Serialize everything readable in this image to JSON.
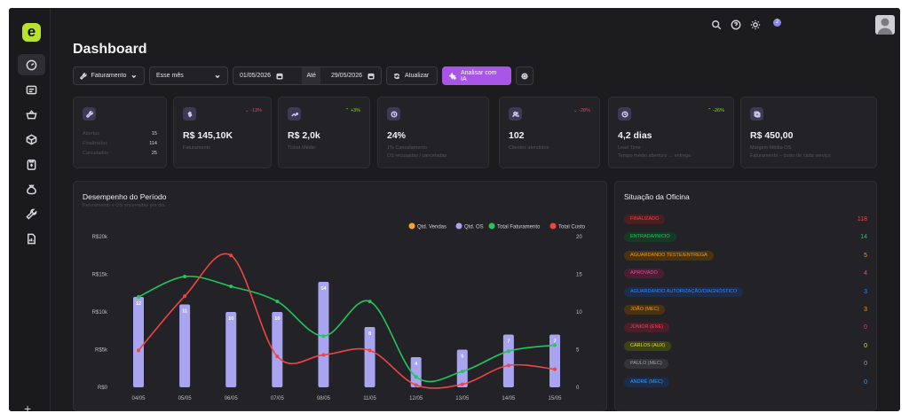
{
  "header": {
    "title": "Dashboard",
    "notification_count": "2"
  },
  "filters": {
    "metric": "Faturamento",
    "period": "Esse mês",
    "date_from": "01/05/2026",
    "until_label": "Até",
    "date_to": "29/05/2026",
    "refresh_label": "Atualizar",
    "ai_label": "Analisar com IA"
  },
  "cards": [
    {
      "value": "",
      "rows": [
        {
          "label": "Abertas",
          "value": "15"
        },
        {
          "label": "Finalizadas",
          "value": "114"
        },
        {
          "label": "Cancelados",
          "value": "25"
        }
      ]
    },
    {
      "value": "R$ 145,10K",
      "change": "-13%",
      "trend": "down",
      "sub": "Faturamento"
    },
    {
      "value": "R$ 2,0k",
      "change": "+3%",
      "trend": "up",
      "sub": "Ticket Médio"
    },
    {
      "value": "24%",
      "change": "",
      "sub": "1% Cancelamento",
      "sub2": "OS recusadas / canceladas"
    },
    {
      "value": "102",
      "change": "-28%",
      "trend": "down",
      "sub": "Clientes atendidos"
    },
    {
      "value": "4,2 dias",
      "change": "-26%",
      "trend": "up",
      "sub": "Lead Time",
      "sub2": "Tempo médio abertura → entrega"
    },
    {
      "value": "R$ 450,00",
      "change": "",
      "sub": "Margem Média OS",
      "sub2": "Faturamento − custo de cada serviço"
    }
  ],
  "performance": {
    "title": "Desempenho do Período",
    "subtitle": "Faturamento e OS encerradas por dia",
    "legend": [
      "Qtd. Vendas",
      "Qtd. OS",
      "Total Faturamento",
      "Total Custo"
    ],
    "colors": {
      "vendas": "#f5a524",
      "os": "#a9a4f0",
      "faturamento": "#22c55e",
      "custo": "#ef4444"
    }
  },
  "chart_data": {
    "type": "bar",
    "categories": [
      "04/05",
      "05/05",
      "06/05",
      "07/05",
      "08/05",
      "11/05",
      "12/05",
      "13/05",
      "14/05",
      "15/05"
    ],
    "y_left_ticks": [
      "R$0",
      "R$5k",
      "R$10k",
      "R$15k",
      "R$20k"
    ],
    "y_left_range": [
      0,
      20000
    ],
    "y_right_ticks": [
      "0",
      "5",
      "10",
      "15",
      "20"
    ],
    "y_right_range": [
      0,
      20
    ],
    "series": [
      {
        "name": "Qtd. OS",
        "type": "bar",
        "axis": "right",
        "values": [
          12,
          11,
          10,
          10,
          14,
          8,
          4,
          5,
          7,
          7
        ]
      },
      {
        "name": "Total Faturamento",
        "type": "line",
        "axis": "left",
        "values": [
          12000,
          14700,
          13400,
          11400,
          6800,
          11400,
          1400,
          2100,
          4800,
          5600
        ]
      },
      {
        "name": "Total Custo",
        "type": "line",
        "axis": "left",
        "values": [
          4900,
          12100,
          17500,
          4100,
          4300,
          4900,
          300,
          400,
          2900,
          2400
        ]
      }
    ]
  },
  "situation": {
    "title": "Situação da Oficina",
    "items": [
      {
        "label": "FINALIZADO",
        "count": "118",
        "fg": "#ef4444",
        "bg": "#4a1f22"
      },
      {
        "label": "ENTRADA/INICIO",
        "count": "14",
        "fg": "#22c55e",
        "bg": "#173a26"
      },
      {
        "label": "AGUARDANDO TESTE/ENTREGA",
        "count": "5",
        "fg": "#f59e0b",
        "bg": "#4a3310"
      },
      {
        "label": "APROVADO",
        "count": "4",
        "fg": "#ec4899",
        "bg": "#4a1f36"
      },
      {
        "label": "AGUARDANDO AUTORIZAÇÃO/DIAGNÓSTICO",
        "count": "3",
        "fg": "#3b82f6",
        "bg": "#1b2d4a"
      },
      {
        "label": "JOÃO (MEC)",
        "count": "3",
        "fg": "#f59e0b",
        "bg": "#4a3310"
      },
      {
        "label": "JÚNIOR (ENE)",
        "count": "0",
        "fg": "#f43f5e",
        "bg": "#4a1f2a"
      },
      {
        "label": "CARLOS (AUX)",
        "count": "0",
        "fg": "#d9e02a",
        "bg": "#3d4214"
      },
      {
        "label": "PAULO (MEC)",
        "count": "0",
        "fg": "#9ca3af",
        "bg": "#333338"
      },
      {
        "label": "ANDRÉ (MEC)",
        "count": "0",
        "fg": "#3b9cf6",
        "bg": "#1b2d4a"
      }
    ]
  },
  "icons": {
    "sidebar": [
      "dashboard-icon",
      "id-card-icon",
      "basket-icon",
      "box-icon",
      "clipboard-icon",
      "moneybag-icon",
      "wrench-icon",
      "report-icon"
    ],
    "top": [
      "search-icon",
      "help-icon",
      "theme-icon",
      "notification-icon"
    ]
  }
}
